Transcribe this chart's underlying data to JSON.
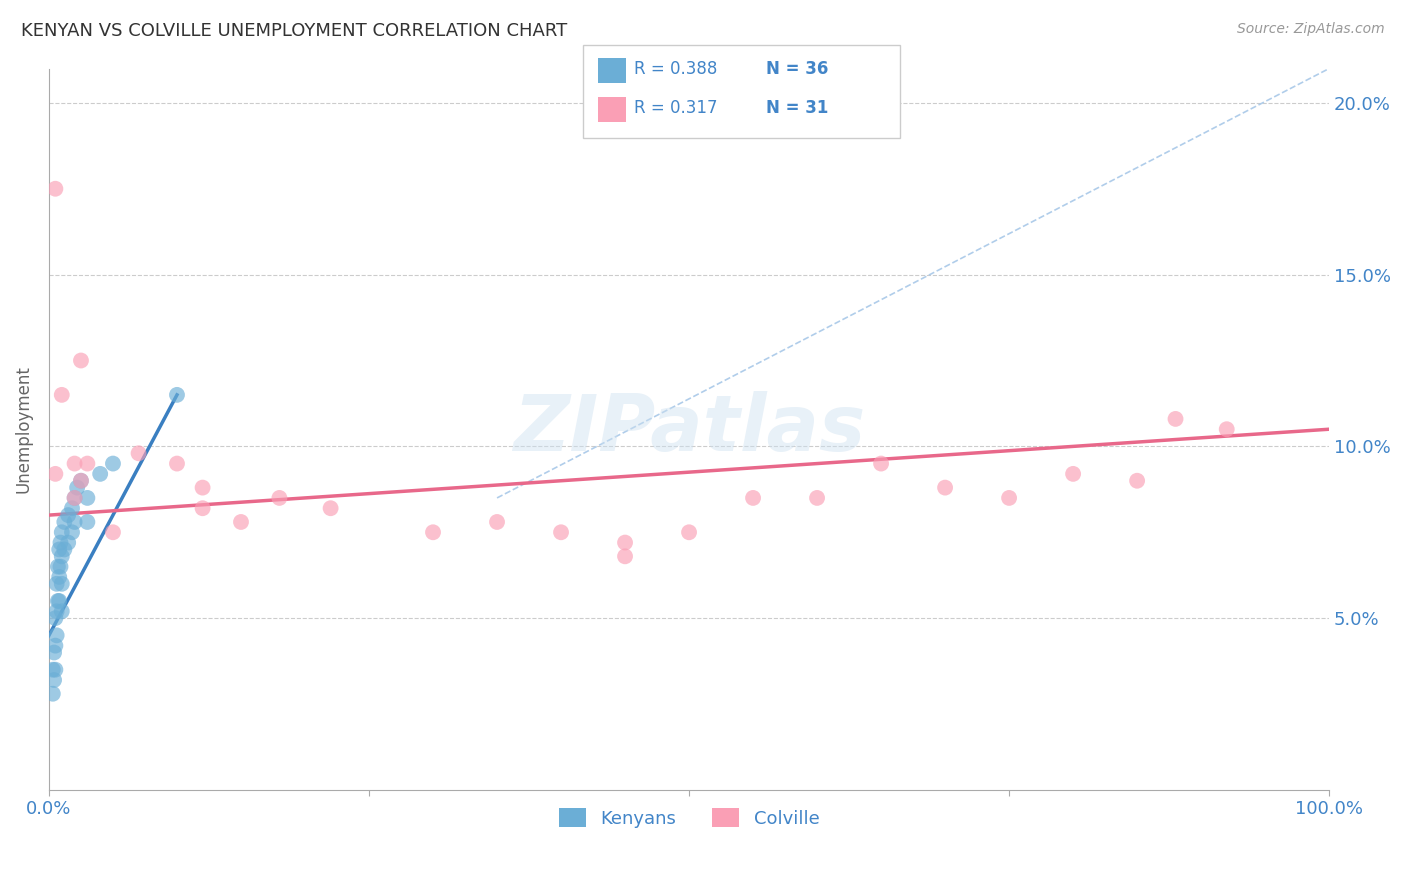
{
  "title": "KENYAN VS COLVILLE UNEMPLOYMENT CORRELATION CHART",
  "source_text": "Source: ZipAtlas.com",
  "ylabel": "Unemployment",
  "y_tick_values": [
    5.0,
    10.0,
    15.0,
    20.0
  ],
  "xlim": [
    0,
    100
  ],
  "ylim": [
    0,
    21
  ],
  "legend_r1": "R = 0.388",
  "legend_n1": "N = 36",
  "legend_r2": "R = 0.317",
  "legend_n2": "N = 31",
  "legend_label1": "Kenyans",
  "legend_label2": "Colville",
  "blue_color": "#6baed6",
  "pink_color": "#fa9fb5",
  "blue_line_color": "#3a7fc1",
  "pink_line_color": "#e8688a",
  "dashed_line_color": "#a8c8e8",
  "title_color": "#333333",
  "axis_label_color": "#4285c8",
  "background_color": "#ffffff",
  "kenyans_x": [
    0.3,
    0.3,
    0.4,
    0.4,
    0.5,
    0.5,
    0.5,
    0.6,
    0.6,
    0.6,
    0.7,
    0.7,
    0.8,
    0.8,
    0.8,
    0.9,
    0.9,
    1.0,
    1.0,
    1.0,
    1.0,
    1.2,
    1.2,
    1.5,
    1.5,
    1.8,
    1.8,
    2.0,
    2.0,
    2.2,
    2.5,
    3.0,
    3.0,
    4.0,
    5.0,
    10.0
  ],
  "kenyans_y": [
    3.5,
    2.8,
    4.0,
    3.2,
    5.0,
    4.2,
    3.5,
    6.0,
    5.2,
    4.5,
    6.5,
    5.5,
    7.0,
    6.2,
    5.5,
    7.2,
    6.5,
    7.5,
    6.8,
    6.0,
    5.2,
    7.8,
    7.0,
    8.0,
    7.2,
    8.2,
    7.5,
    8.5,
    7.8,
    8.8,
    9.0,
    8.5,
    7.8,
    9.2,
    9.5,
    11.5
  ],
  "colville_x": [
    0.5,
    0.5,
    1.0,
    2.0,
    2.0,
    2.5,
    2.5,
    3.0,
    5.0,
    7.0,
    10.0,
    12.0,
    12.0,
    15.0,
    18.0,
    22.0,
    30.0,
    35.0,
    40.0,
    45.0,
    45.0,
    50.0,
    55.0,
    60.0,
    65.0,
    70.0,
    75.0,
    80.0,
    85.0,
    88.0,
    92.0
  ],
  "colville_y": [
    17.5,
    9.2,
    11.5,
    9.5,
    8.5,
    12.5,
    9.0,
    9.5,
    7.5,
    9.8,
    9.5,
    8.8,
    8.2,
    7.8,
    8.5,
    8.2,
    7.5,
    7.8,
    7.5,
    7.2,
    6.8,
    7.5,
    8.5,
    8.5,
    9.5,
    8.8,
    8.5,
    9.2,
    9.0,
    10.8,
    10.5
  ],
  "blue_trendline_x": [
    0,
    10
  ],
  "blue_trendline_y": [
    4.5,
    11.5
  ],
  "pink_trendline_x": [
    0,
    100
  ],
  "pink_trendline_y": [
    8.0,
    10.5
  ],
  "dashed_line_x": [
    35,
    100
  ],
  "dashed_line_y": [
    8.5,
    21.0
  ]
}
